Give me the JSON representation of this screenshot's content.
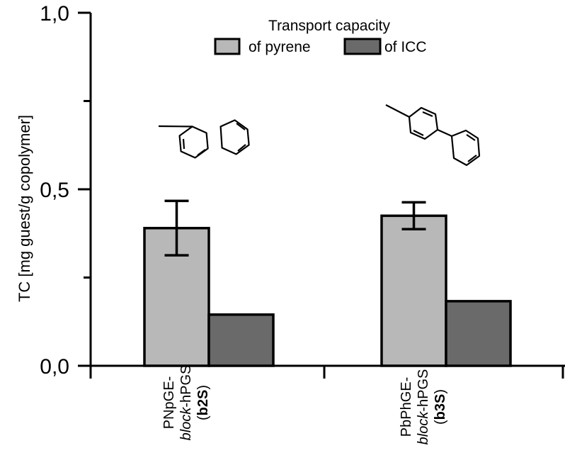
{
  "chart_data": {
    "type": "bar",
    "ylabel": "TC [mg guest/g copolymer]",
    "ylim": [
      0,
      1.0
    ],
    "yticks": [
      {
        "value": 0,
        "label": "0,0"
      },
      {
        "value": 0.5,
        "label": "0,5"
      },
      {
        "value": 1.0,
        "label": "1,0"
      }
    ],
    "categories": [
      {
        "line1": "PNpGE-",
        "line2_italic": "block",
        "line2_rest": "-hPGS",
        "line3_open": "(",
        "line3_bold": "b2S",
        "line3_close": ")"
      },
      {
        "line1": "PbPhGE-",
        "line2_italic": "block",
        "line2_rest": "-hPGS",
        "line3_open": "(",
        "line3_bold": "b3S",
        "line3_close": ")"
      }
    ],
    "legend": {
      "title": "Transport capacity",
      "placement": "top-center",
      "entries": [
        "of pyrene",
        "of ICC"
      ]
    },
    "series": [
      {
        "name": "of pyrene",
        "color": "#b8b8b8",
        "values": [
          0.39,
          0.425
        ],
        "errors": [
          0.077,
          0.038
        ]
      },
      {
        "name": "of ICC",
        "color": "#6a6a6a",
        "values": [
          0.145,
          0.183
        ],
        "errors": [
          0.002,
          0.002
        ]
      }
    ],
    "grid": false
  }
}
